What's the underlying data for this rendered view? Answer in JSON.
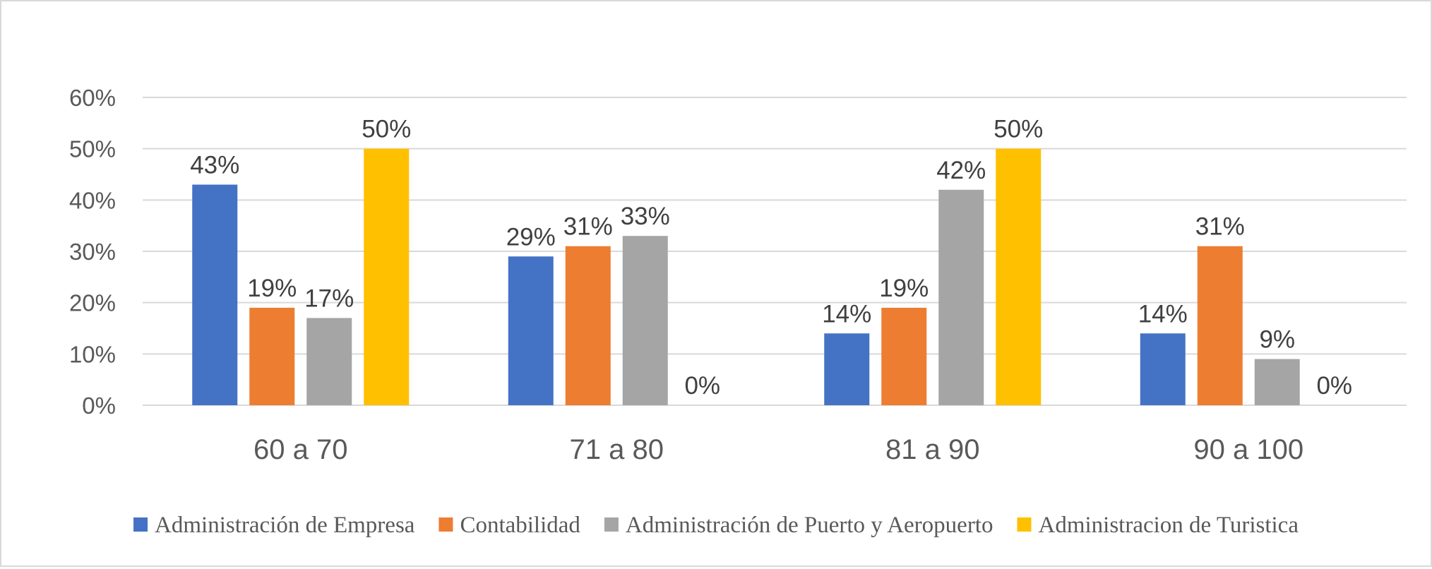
{
  "chart_data": {
    "type": "bar",
    "title": "",
    "xlabel": "",
    "ylabel": "",
    "ylim": [
      0,
      60
    ],
    "yticks": [
      0,
      10,
      20,
      30,
      40,
      50,
      60
    ],
    "ytick_suffix": "%",
    "grid": true,
    "legend_position": "bottom",
    "categories": [
      "60 a 70",
      "71 a 80",
      "81 a 90",
      "90 a 100"
    ],
    "series": [
      {
        "name": "Administración de Empresa",
        "color": "#4472C4",
        "values": [
          43,
          29,
          14,
          14
        ]
      },
      {
        "name": "Contabilidad",
        "color": "#ED7D31",
        "values": [
          19,
          31,
          19,
          31
        ]
      },
      {
        "name": "Administración de Puerto y Aeropuerto",
        "color": "#A5A5A5",
        "values": [
          17,
          33,
          42,
          9
        ]
      },
      {
        "name": "Administracion de Turistica",
        "color": "#FFC000",
        "values": [
          50,
          0,
          50,
          0
        ]
      }
    ]
  }
}
